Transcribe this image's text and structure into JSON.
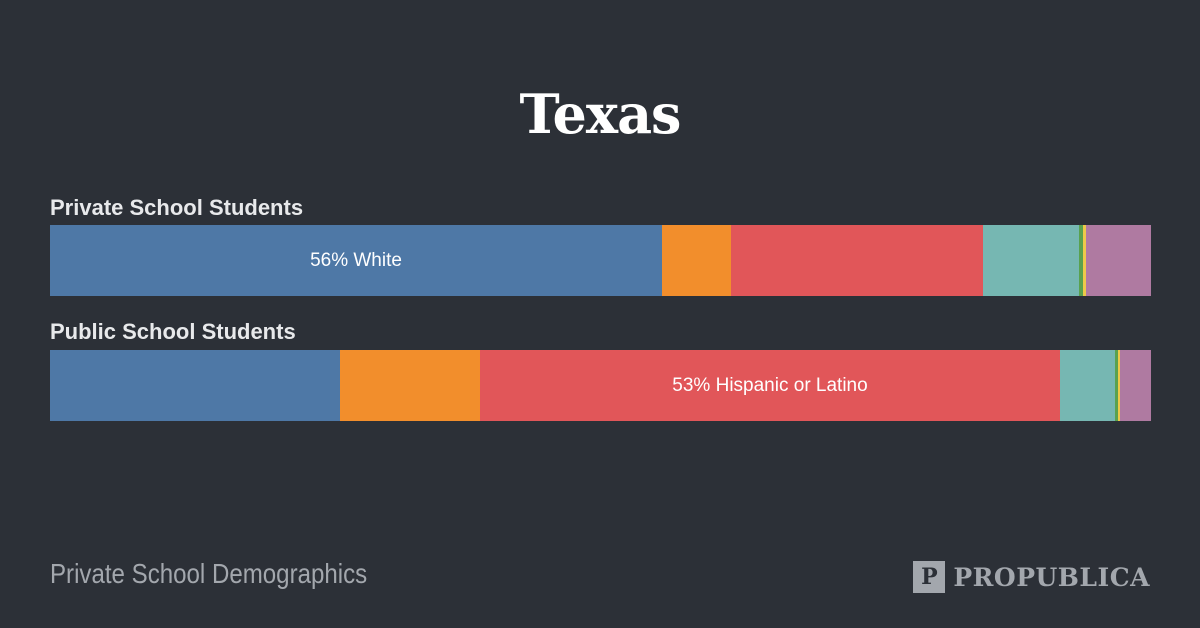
{
  "chart_data": {
    "type": "bar",
    "orientation": "horizontal-stacked-100",
    "title": "Texas",
    "categories": [
      "Private School Students",
      "Public School Students"
    ],
    "segment_colors": [
      "#4e78a6",
      "#f28e2c",
      "#e15659",
      "#76b7b2",
      "#59a14e",
      "#edc949",
      "#af7aa1"
    ],
    "rows": [
      {
        "label": "Private School Students",
        "segments": [
          55.6,
          6.3,
          22.9,
          8.7,
          0.4,
          0.3,
          5.8
        ],
        "annotation": "56% White",
        "annotation_index": 0
      },
      {
        "label": "Public School Students",
        "segments": [
          26.3,
          12.7,
          52.7,
          5.0,
          0.3,
          0.2,
          2.8
        ],
        "annotation": "53% Hispanic or Latino",
        "annotation_index": 2
      }
    ]
  },
  "footer": {
    "left_text": "Private School Demographics",
    "brand_icon_text": "P",
    "brand_name": "PROPUBLICA"
  }
}
